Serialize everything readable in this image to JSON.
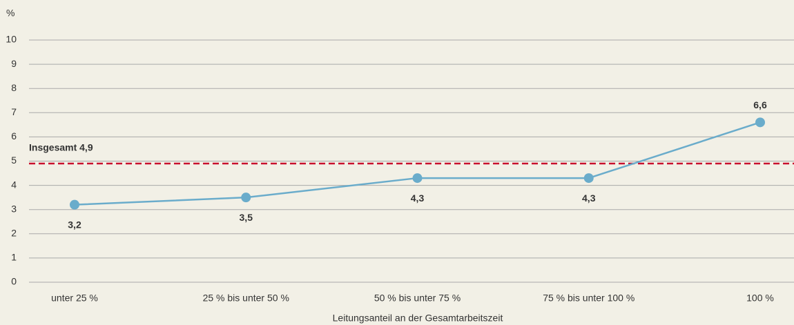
{
  "chart_data": {
    "type": "line",
    "y_label": "%",
    "x_label": "Leitungsanteil an der Gesamtarbeitszeit",
    "categories": [
      "unter 25 %",
      "25 % bis unter  50 %",
      "50 % bis unter  75 %",
      "75 % bis unter  100 %",
      "100 %"
    ],
    "values": [
      3.2,
      3.5,
      4.3,
      4.3,
      6.6
    ],
    "value_labels": [
      "3,2",
      "3,5",
      "4,3",
      "4,3",
      "6,6"
    ],
    "color": "#6aaccb",
    "ylim": [
      0,
      10
    ],
    "yticks": [
      0,
      1,
      2,
      3,
      4,
      5,
      6,
      7,
      8,
      9,
      10
    ],
    "grid": true,
    "reference_line": {
      "value": 4.9,
      "label": "Insgesamt 4,9",
      "color": "#c8102e"
    }
  }
}
